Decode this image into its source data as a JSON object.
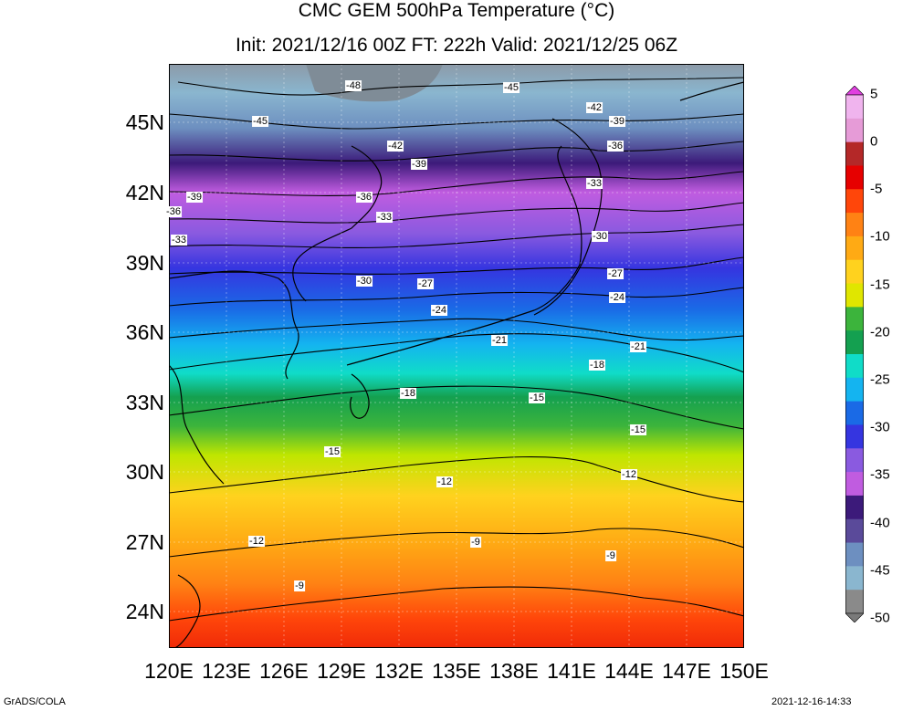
{
  "title": {
    "line1": "CMC GEM 500hPa Temperature (°C)",
    "line2": "Init: 2021/12/16 00Z  FT: 222h  Valid: 2021/12/25 06Z"
  },
  "axes": {
    "lat_labels": [
      "45N",
      "42N",
      "39N",
      "36N",
      "33N",
      "30N",
      "27N",
      "24N"
    ],
    "lon_labels": [
      "120E",
      "123E",
      "126E",
      "129E",
      "132E",
      "135E",
      "138E",
      "141E",
      "144E",
      "147E",
      "150E"
    ],
    "lat_range": [
      22.5,
      47.5
    ],
    "lon_range": [
      120,
      150
    ]
  },
  "contour_labels": [
    "-48",
    "-45",
    "-45",
    "-42",
    "-42",
    "-39",
    "-39",
    "-39",
    "-36",
    "-36",
    "-36",
    "-33",
    "-33",
    "-33",
    "-30",
    "-30",
    "-27",
    "-27",
    "-24",
    "-24",
    "-21",
    "-21",
    "-18",
    "-18",
    "-15",
    "-15",
    "-15",
    "-12",
    "-12",
    "-12",
    "-9",
    "-9",
    "-9"
  ],
  "colorbar": {
    "labels": [
      "5",
      "0",
      "-5",
      "-10",
      "-15",
      "-20",
      "-25",
      "-30",
      "-35",
      "-40",
      "-45",
      "-50"
    ],
    "range": [
      -50,
      5
    ],
    "colors": {
      "n50": "#8a8a8a",
      "n45": "#8ab6cf",
      "n42": "#6d8fc0",
      "n40": "#5a4a9a",
      "n38": "#3c1a7a",
      "n35": "#c05ce0",
      "n32": "#8a5ae0",
      "n30": "#3535e0",
      "n28": "#1a6ae6",
      "n25": "#14b4f0",
      "n23": "#10dcc8",
      "n20": "#14a050",
      "n18": "#3cb43c",
      "n15": "#e0e600",
      "n12": "#ffd21e",
      "n10": "#ffaa14",
      "n8": "#ff8214",
      "n5": "#ff460a",
      "n3": "#e60000",
      "n0": "#b42828",
      "p3": "#e69bd7",
      "p5": "#f0b4ee"
    }
  },
  "footer": {
    "left": "GrADS/COLA",
    "right": "2021-12-16-14:33"
  }
}
